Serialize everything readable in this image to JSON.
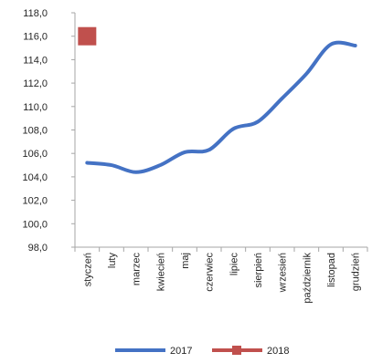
{
  "chart_data": {
    "type": "line",
    "categories": [
      "styczeń",
      "luty",
      "marzec",
      "kwiecień",
      "maj",
      "czerwiec",
      "lipiec",
      "sierpień",
      "wrzesień",
      "październik",
      "listopad",
      "grudzień"
    ],
    "ylim": [
      98.0,
      118.0
    ],
    "yticks": [
      "98,0",
      "100,0",
      "102,0",
      "104,0",
      "106,0",
      "108,0",
      "110,0",
      "112,0",
      "114,0",
      "116,0",
      "118,0"
    ],
    "grid": false,
    "legend_position": "bottom",
    "series": [
      {
        "name": "2017",
        "color": "#4472c4",
        "marker": "none",
        "values": [
          105.2,
          105.0,
          104.4,
          105.0,
          106.1,
          106.3,
          108.1,
          108.7,
          110.7,
          112.8,
          115.3,
          115.2
        ]
      },
      {
        "name": "2018",
        "color": "#c0504d",
        "marker": "square",
        "values": [
          116.0,
          null,
          null,
          null,
          null,
          null,
          null,
          null,
          null,
          null,
          null,
          null
        ]
      }
    ]
  }
}
